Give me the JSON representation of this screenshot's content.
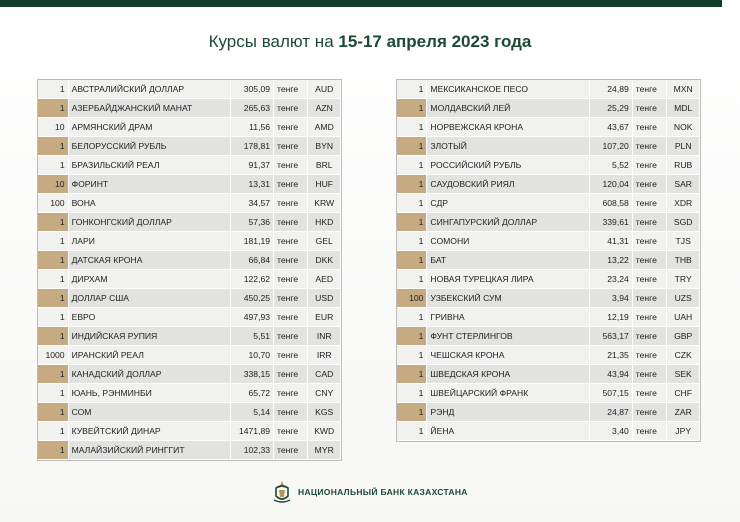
{
  "header": {
    "title": {
      "prefix": "Курсы валют на ",
      "date": "15-17 апреля 2023 года"
    }
  },
  "tables": [
    {
      "rows": [
        [
          1,
          "АВСТРАЛИЙСКИЙ ДОЛЛАР",
          "305,09",
          "тенге",
          "AUD"
        ],
        [
          1,
          "АЗЕРБАЙДЖАНСКИЙ МАНАТ",
          "265,63",
          "тенге",
          "AZN"
        ],
        [
          10,
          "АРМЯНСКИЙ ДРАМ",
          "11,56",
          "тенге",
          "AMD"
        ],
        [
          1,
          "БЕЛОРУССКИЙ РУБЛЬ",
          "178,81",
          "тенге",
          "BYN"
        ],
        [
          1,
          "БРАЗИЛЬСКИЙ РЕАЛ",
          "91,37",
          "тенге",
          "BRL"
        ],
        [
          10,
          "ФОРИНТ",
          "13,31",
          "тенге",
          "HUF"
        ],
        [
          100,
          "ВОНА",
          "34,57",
          "тенге",
          "KRW"
        ],
        [
          1,
          "ГОНКОНГСКИЙ ДОЛЛАР",
          "57,36",
          "тенге",
          "HKD"
        ],
        [
          1,
          "ЛАРИ",
          "181,19",
          "тенге",
          "GEL"
        ],
        [
          1,
          "ДАТСКАЯ КРОНА",
          "66,84",
          "тенге",
          "DKK"
        ],
        [
          1,
          "ДИРХАМ",
          "122,62",
          "тенге",
          "AED"
        ],
        [
          1,
          "ДОЛЛАР США",
          "450,25",
          "тенге",
          "USD"
        ],
        [
          1,
          "ЕВРО",
          "497,93",
          "тенге",
          "EUR"
        ],
        [
          1,
          "ИНДИЙСКАЯ РУПИЯ",
          "5,51",
          "тенге",
          "INR"
        ],
        [
          1000,
          "ИРАНСКИЙ РЕАЛ",
          "10,70",
          "тенге",
          "IRR"
        ],
        [
          1,
          "КАНАДСКИЙ ДОЛЛАР",
          "338,15",
          "тенге",
          "CAD"
        ],
        [
          1,
          "ЮАНЬ, РЭНМИНБИ",
          "65,72",
          "тенге",
          "CNY"
        ],
        [
          1,
          "СОМ",
          "5,14",
          "тенге",
          "KGS"
        ],
        [
          1,
          "КУВЕЙТСКИЙ ДИНАР",
          "1471,89",
          "тенге",
          "KWD"
        ],
        [
          1,
          "МАЛАЙЗИЙСКИЙ РИНГГИТ",
          "102,33",
          "тенге",
          "MYR"
        ]
      ]
    },
    {
      "rows": [
        [
          1,
          "МЕКСИКАНСКОЕ ПЕСО",
          "24,89",
          "тенге",
          "MXN"
        ],
        [
          1,
          "МОЛДАВСКИЙ ЛЕЙ",
          "25,29",
          "тенге",
          "MDL"
        ],
        [
          1,
          "НОРВЕЖСКАЯ КРОНА",
          "43,67",
          "тенге",
          "NOK"
        ],
        [
          1,
          "ЗЛОТЫЙ",
          "107,20",
          "тенге",
          "PLN"
        ],
        [
          1,
          "РОССИЙСКИЙ РУБЛЬ",
          "5,52",
          "тенге",
          "RUB"
        ],
        [
          1,
          "САУДОВСКИЙ РИЯЛ",
          "120,04",
          "тенге",
          "SAR"
        ],
        [
          1,
          "СДР",
          "608,58",
          "тенге",
          "XDR"
        ],
        [
          1,
          "СИНГАПУРСКИЙ ДОЛЛАР",
          "339,61",
          "тенге",
          "SGD"
        ],
        [
          1,
          "СОМОНИ",
          "41,31",
          "тенге",
          "TJS"
        ],
        [
          1,
          "БАТ",
          "13,22",
          "тенге",
          "THB"
        ],
        [
          1,
          "НОВАЯ ТУРЕЦКАЯ ЛИРА",
          "23,24",
          "тенге",
          "TRY"
        ],
        [
          100,
          "УЗБЕКСКИЙ СУМ",
          "3,94",
          "тенге",
          "UZS"
        ],
        [
          1,
          "ГРИВНА",
          "12,19",
          "тенге",
          "UAH"
        ],
        [
          1,
          "ФУНТ СТЕРЛИНГОВ",
          "563,17",
          "тенге",
          "GBP"
        ],
        [
          1,
          "ЧЕШСКАЯ КРОНА",
          "21,35",
          "тенге",
          "CZK"
        ],
        [
          1,
          "ШВЕДСКАЯ КРОНА",
          "43,94",
          "тенге",
          "SEK"
        ],
        [
          1,
          "ШВЕЙЦАРСКИЙ ФРАНК",
          "507,15",
          "тенге",
          "CHF"
        ],
        [
          1,
          "РЭНД",
          "24,87",
          "тенге",
          "ZAR"
        ],
        [
          1,
          "ЙЕНА",
          "3,40",
          "тенге",
          "JPY"
        ]
      ]
    }
  ],
  "footer": {
    "bank": "НАЦИОНАЛЬНЫЙ БАНК КАЗАХСТАНА"
  }
}
